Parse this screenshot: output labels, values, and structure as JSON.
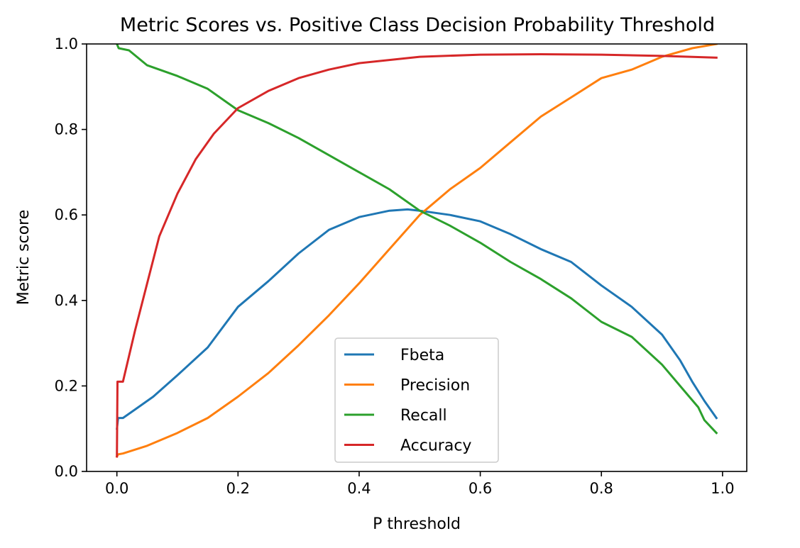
{
  "chart_data": {
    "type": "line",
    "title": "Metric Scores vs. Positive Class Decision Probability Threshold",
    "xlabel": "P threshold",
    "ylabel": "Metric score",
    "xlim": [
      -0.05,
      1.04
    ],
    "ylim": [
      0.0,
      1.0
    ],
    "x_ticks": [
      0.0,
      0.2,
      0.4,
      0.6,
      0.8,
      1.0
    ],
    "x_tick_labels": [
      "0.0",
      "0.2",
      "0.4",
      "0.6",
      "0.8",
      "1.0"
    ],
    "y_ticks": [
      0.0,
      0.2,
      0.4,
      0.6,
      0.8,
      1.0
    ],
    "y_tick_labels": [
      "0.0",
      "0.2",
      "0.4",
      "0.6",
      "0.8",
      "1.0"
    ],
    "grid": false,
    "legend_position": "lower-center",
    "series": [
      {
        "name": "Fbeta",
        "color": "#1f77b4",
        "points": [
          [
            0.0,
            0.1
          ],
          [
            0.002,
            0.125
          ],
          [
            0.01,
            0.125
          ],
          [
            0.03,
            0.145
          ],
          [
            0.06,
            0.175
          ],
          [
            0.1,
            0.225
          ],
          [
            0.15,
            0.29
          ],
          [
            0.2,
            0.385
          ],
          [
            0.25,
            0.445
          ],
          [
            0.3,
            0.51
          ],
          [
            0.35,
            0.565
          ],
          [
            0.4,
            0.595
          ],
          [
            0.45,
            0.61
          ],
          [
            0.48,
            0.613
          ],
          [
            0.5,
            0.61
          ],
          [
            0.55,
            0.6
          ],
          [
            0.6,
            0.585
          ],
          [
            0.65,
            0.555
          ],
          [
            0.7,
            0.52
          ],
          [
            0.75,
            0.49
          ],
          [
            0.8,
            0.435
          ],
          [
            0.85,
            0.385
          ],
          [
            0.9,
            0.32
          ],
          [
            0.93,
            0.26
          ],
          [
            0.95,
            0.21
          ],
          [
            0.97,
            0.165
          ],
          [
            0.99,
            0.125
          ]
        ]
      },
      {
        "name": "Precision",
        "color": "#ff7f0e",
        "points": [
          [
            0.0,
            0.035
          ],
          [
            0.002,
            0.04
          ],
          [
            0.01,
            0.042
          ],
          [
            0.05,
            0.06
          ],
          [
            0.1,
            0.09
          ],
          [
            0.15,
            0.125
          ],
          [
            0.2,
            0.175
          ],
          [
            0.25,
            0.23
          ],
          [
            0.3,
            0.295
          ],
          [
            0.35,
            0.365
          ],
          [
            0.4,
            0.44
          ],
          [
            0.45,
            0.52
          ],
          [
            0.5,
            0.6
          ],
          [
            0.55,
            0.66
          ],
          [
            0.6,
            0.71
          ],
          [
            0.65,
            0.77
          ],
          [
            0.7,
            0.83
          ],
          [
            0.75,
            0.875
          ],
          [
            0.8,
            0.92
          ],
          [
            0.85,
            0.94
          ],
          [
            0.9,
            0.97
          ],
          [
            0.95,
            0.99
          ],
          [
            0.99,
            1.0
          ]
        ]
      },
      {
        "name": "Recall",
        "color": "#2ca02c",
        "points": [
          [
            0.0,
            1.0
          ],
          [
            0.003,
            0.99
          ],
          [
            0.02,
            0.985
          ],
          [
            0.05,
            0.95
          ],
          [
            0.1,
            0.925
          ],
          [
            0.15,
            0.895
          ],
          [
            0.2,
            0.845
          ],
          [
            0.25,
            0.815
          ],
          [
            0.3,
            0.78
          ],
          [
            0.35,
            0.74
          ],
          [
            0.4,
            0.7
          ],
          [
            0.45,
            0.66
          ],
          [
            0.5,
            0.61
          ],
          [
            0.55,
            0.575
          ],
          [
            0.6,
            0.535
          ],
          [
            0.65,
            0.49
          ],
          [
            0.7,
            0.45
          ],
          [
            0.75,
            0.405
          ],
          [
            0.8,
            0.35
          ],
          [
            0.85,
            0.315
          ],
          [
            0.9,
            0.25
          ],
          [
            0.93,
            0.2
          ],
          [
            0.96,
            0.15
          ],
          [
            0.97,
            0.12
          ],
          [
            0.99,
            0.09
          ]
        ]
      },
      {
        "name": "Accuracy",
        "color": "#d62728",
        "points": [
          [
            0.0,
            0.035
          ],
          [
            0.001,
            0.21
          ],
          [
            0.01,
            0.21
          ],
          [
            0.03,
            0.33
          ],
          [
            0.05,
            0.44
          ],
          [
            0.07,
            0.55
          ],
          [
            0.1,
            0.65
          ],
          [
            0.13,
            0.73
          ],
          [
            0.16,
            0.79
          ],
          [
            0.2,
            0.85
          ],
          [
            0.25,
            0.89
          ],
          [
            0.3,
            0.92
          ],
          [
            0.35,
            0.94
          ],
          [
            0.4,
            0.955
          ],
          [
            0.5,
            0.97
          ],
          [
            0.6,
            0.975
          ],
          [
            0.7,
            0.976
          ],
          [
            0.8,
            0.975
          ],
          [
            0.9,
            0.972
          ],
          [
            0.99,
            0.968
          ]
        ]
      }
    ]
  }
}
